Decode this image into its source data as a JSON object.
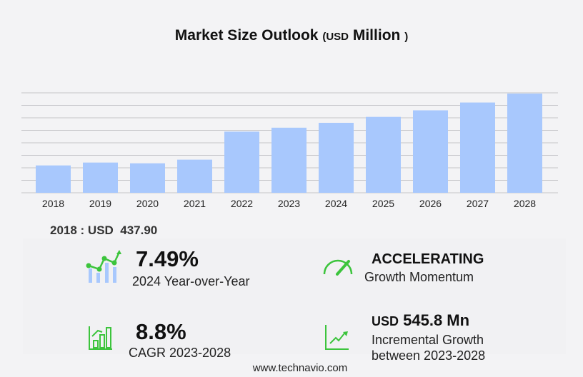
{
  "title": {
    "main": "Market Size Outlook",
    "unit_open": "(",
    "unit": "USD",
    "unit_word": "Million",
    "unit_close": ")"
  },
  "chart_data": {
    "type": "bar",
    "title": "Market Size Outlook (USD Million)",
    "categories": [
      "2018",
      "2019",
      "2020",
      "2021",
      "2022",
      "2023",
      "2024",
      "2025",
      "2026",
      "2027",
      "2028"
    ],
    "values": [
      437.9,
      484,
      472,
      530,
      979,
      1042,
      1120,
      1215,
      1320,
      1445,
      1588
    ],
    "ylim": [
      0,
      1600
    ],
    "grid": true,
    "bar_color": "#a8c8fd"
  },
  "base_value": "2018 : USD  437.90",
  "stats": {
    "yoy_value": "7.49%",
    "yoy_label": "2024 Year-over-Year",
    "momentum_value": "ACCELERATING",
    "momentum_label": "Growth Momentum",
    "cagr_value": "8.8%",
    "cagr_label": "CAGR 2023-2028",
    "incr_currency": "USD",
    "incr_value": "545.8 Mn",
    "incr_label1": "Incremental Growth",
    "incr_label2": "between 2023-2028"
  },
  "footer": "www.technavio.com",
  "colors": {
    "accent_green": "#3cc43c",
    "bar_blue": "#a8c8fd"
  }
}
